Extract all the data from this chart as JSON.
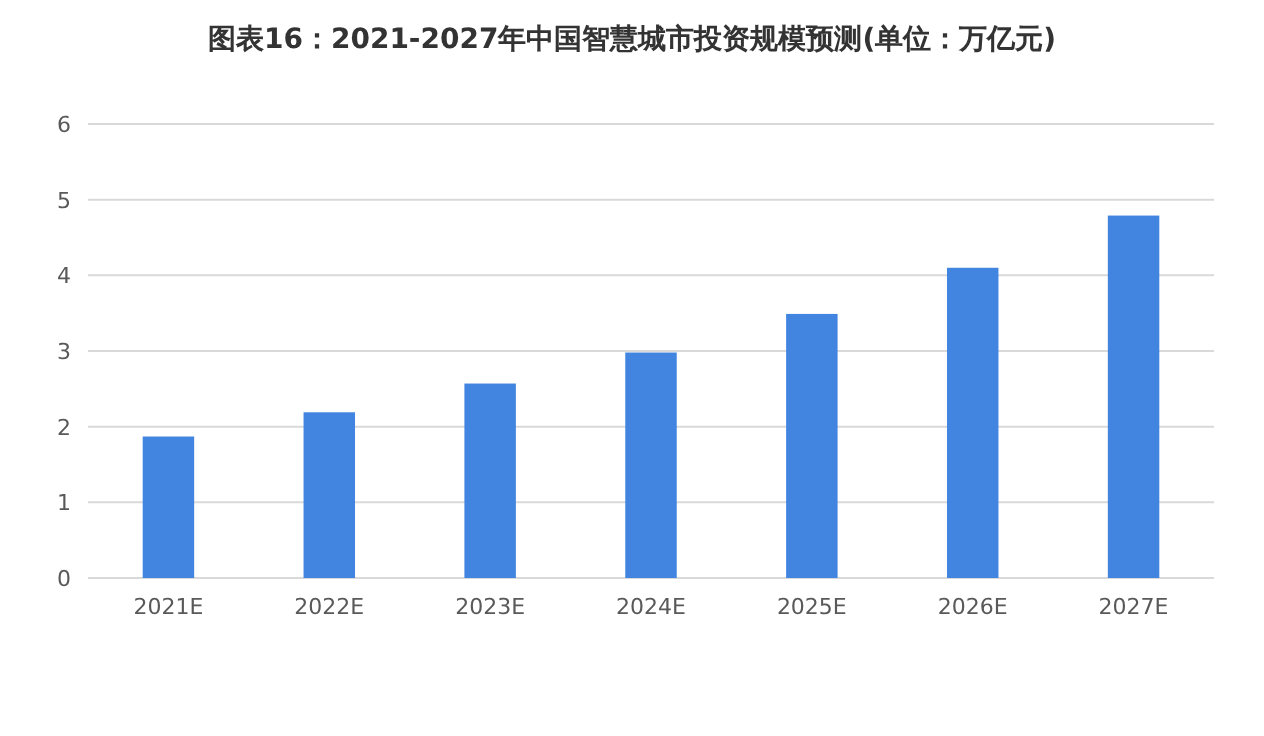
{
  "chart_data": {
    "type": "bar",
    "title": "图表16：2021-2027年中国智慧城市投资规模预测(单位：万亿元)",
    "categories": [
      "2021E",
      "2022E",
      "2023E",
      "2024E",
      "2025E",
      "2026E",
      "2027E"
    ],
    "values": [
      1.87,
      2.19,
      2.57,
      2.98,
      3.49,
      4.1,
      4.79
    ],
    "color": "#4285e0",
    "ylim": [
      0,
      6
    ],
    "yticks": [
      0,
      1,
      2,
      3,
      4,
      5,
      6
    ],
    "grid": "y"
  }
}
